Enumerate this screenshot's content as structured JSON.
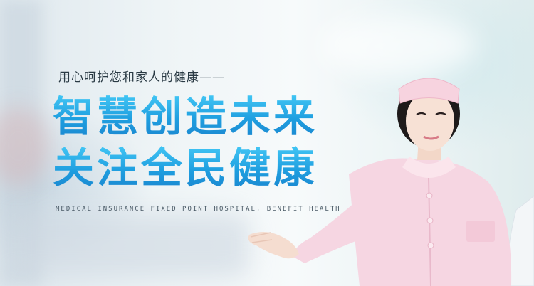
{
  "banner": {
    "tagline": "用心呵护您和家人的健康——",
    "headline_line1": "智慧创造未来",
    "headline_line2": "关注全民健康",
    "subtitle_en": "MEDICAL INSURANCE FIXED POINT HOSPITAL, BENEFIT HEALTH"
  },
  "colors": {
    "headline_blue": "#1f9fe0",
    "uniform_pink": "#f6d6e2",
    "background": "#eef4f6"
  }
}
